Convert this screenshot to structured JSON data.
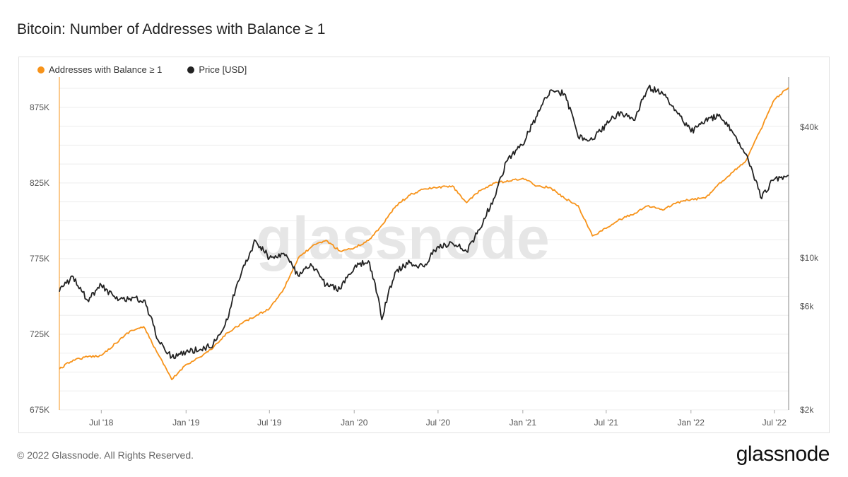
{
  "title": "Bitcoin: Number of Addresses with Balance ≥ 1",
  "footer": "© 2022 Glassnode. All Rights Reserved.",
  "brand": "glassnode",
  "watermark": "glassnode",
  "legend": [
    {
      "label": "Addresses with Balance ≥ 1",
      "color": "#f7931a"
    },
    {
      "label": "Price [USD]",
      "color": "#222222"
    }
  ],
  "chart_data": {
    "type": "line",
    "x_ticks": [
      "Jul '18",
      "Jan '19",
      "Jul '19",
      "Jan '20",
      "Jul '20",
      "Jan '21",
      "Jul '21",
      "Jan '22",
      "Jul '22"
    ],
    "x_range": [
      "2018-04-01",
      "2022-08-01"
    ],
    "y_left": {
      "ticks": [
        "675K",
        "725K",
        "775K",
        "825K",
        "875K"
      ],
      "range": [
        675000,
        895000
      ]
    },
    "y_right": {
      "ticks": [
        "$2k",
        "$6k",
        "$10k",
        "$40k"
      ],
      "scale": "log",
      "range": [
        2000,
        68000
      ]
    },
    "grid": true,
    "series": [
      {
        "name": "Addresses with Balance ≥ 1",
        "axis": "left",
        "color": "#f7931a",
        "points": [
          [
            "2018-04-01",
            702000
          ],
          [
            "2018-05-01",
            708000
          ],
          [
            "2018-06-01",
            710000
          ],
          [
            "2018-07-01",
            711000
          ],
          [
            "2018-08-01",
            719000
          ],
          [
            "2018-09-01",
            727000
          ],
          [
            "2018-10-01",
            730000
          ],
          [
            "2018-11-01",
            712000
          ],
          [
            "2018-12-01",
            695000
          ],
          [
            "2019-01-01",
            705000
          ],
          [
            "2019-02-01",
            710000
          ],
          [
            "2019-03-01",
            716000
          ],
          [
            "2019-04-01",
            726000
          ],
          [
            "2019-05-01",
            732000
          ],
          [
            "2019-06-01",
            737000
          ],
          [
            "2019-07-01",
            742000
          ],
          [
            "2019-08-01",
            755000
          ],
          [
            "2019-09-01",
            775000
          ],
          [
            "2019-10-01",
            783000
          ],
          [
            "2019-11-01",
            787000
          ],
          [
            "2019-12-01",
            780000
          ],
          [
            "2020-01-01",
            782000
          ],
          [
            "2020-02-01",
            787000
          ],
          [
            "2020-03-01",
            797000
          ],
          [
            "2020-04-01",
            810000
          ],
          [
            "2020-05-01",
            817000
          ],
          [
            "2020-06-01",
            821000
          ],
          [
            "2020-07-01",
            822000
          ],
          [
            "2020-08-01",
            823000
          ],
          [
            "2020-09-01",
            812000
          ],
          [
            "2020-10-01",
            820000
          ],
          [
            "2020-11-01",
            825000
          ],
          [
            "2020-12-01",
            826000
          ],
          [
            "2021-01-01",
            828000
          ],
          [
            "2021-02-01",
            823000
          ],
          [
            "2021-03-01",
            822000
          ],
          [
            "2021-04-01",
            815000
          ],
          [
            "2021-05-01",
            810000
          ],
          [
            "2021-06-01",
            790000
          ],
          [
            "2021-07-01",
            795000
          ],
          [
            "2021-08-01",
            801000
          ],
          [
            "2021-09-01",
            805000
          ],
          [
            "2021-10-01",
            810000
          ],
          [
            "2021-11-01",
            807000
          ],
          [
            "2021-12-01",
            812000
          ],
          [
            "2022-01-01",
            814000
          ],
          [
            "2022-02-01",
            815000
          ],
          [
            "2022-03-01",
            824000
          ],
          [
            "2022-04-01",
            832000
          ],
          [
            "2022-05-01",
            840000
          ],
          [
            "2022-06-01",
            860000
          ],
          [
            "2022-07-01",
            880000
          ],
          [
            "2022-08-01",
            888000
          ]
        ]
      },
      {
        "name": "Price [USD]",
        "axis": "right",
        "color": "#222222",
        "points": [
          [
            "2018-04-01",
            7000
          ],
          [
            "2018-05-01",
            8200
          ],
          [
            "2018-06-01",
            6400
          ],
          [
            "2018-07-01",
            7500
          ],
          [
            "2018-08-01",
            6500
          ],
          [
            "2018-09-01",
            6500
          ],
          [
            "2018-10-01",
            6400
          ],
          [
            "2018-11-01",
            4200
          ],
          [
            "2018-12-01",
            3500
          ],
          [
            "2019-01-01",
            3700
          ],
          [
            "2019-02-01",
            3800
          ],
          [
            "2019-03-01",
            4000
          ],
          [
            "2019-04-01",
            5200
          ],
          [
            "2019-05-01",
            8500
          ],
          [
            "2019-06-01",
            12000
          ],
          [
            "2019-07-01",
            10000
          ],
          [
            "2019-08-01",
            10500
          ],
          [
            "2019-09-01",
            8300
          ],
          [
            "2019-10-01",
            9200
          ],
          [
            "2019-11-01",
            7500
          ],
          [
            "2019-12-01",
            7200
          ],
          [
            "2020-01-01",
            9000
          ],
          [
            "2020-02-01",
            9700
          ],
          [
            "2020-03-01",
            5200
          ],
          [
            "2020-04-01",
            8700
          ],
          [
            "2020-05-01",
            9500
          ],
          [
            "2020-06-01",
            9100
          ],
          [
            "2020-07-01",
            11300
          ],
          [
            "2020-08-01",
            11700
          ],
          [
            "2020-09-01",
            10700
          ],
          [
            "2020-10-01",
            13700
          ],
          [
            "2020-11-01",
            19000
          ],
          [
            "2020-12-01",
            29000
          ],
          [
            "2021-01-01",
            33000
          ],
          [
            "2021-02-01",
            45000
          ],
          [
            "2021-03-01",
            59000
          ],
          [
            "2021-04-01",
            57000
          ],
          [
            "2021-05-01",
            36000
          ],
          [
            "2021-06-01",
            35000
          ],
          [
            "2021-07-01",
            41000
          ],
          [
            "2021-08-01",
            47000
          ],
          [
            "2021-09-01",
            43000
          ],
          [
            "2021-10-01",
            61000
          ],
          [
            "2021-11-01",
            57000
          ],
          [
            "2021-12-01",
            47000
          ],
          [
            "2022-01-01",
            38000
          ],
          [
            "2022-02-01",
            43000
          ],
          [
            "2022-03-01",
            45000
          ],
          [
            "2022-04-01",
            38000
          ],
          [
            "2022-05-01",
            30000
          ],
          [
            "2022-06-01",
            19000
          ],
          [
            "2022-07-01",
            23000
          ],
          [
            "2022-08-01",
            24000
          ]
        ]
      }
    ]
  }
}
